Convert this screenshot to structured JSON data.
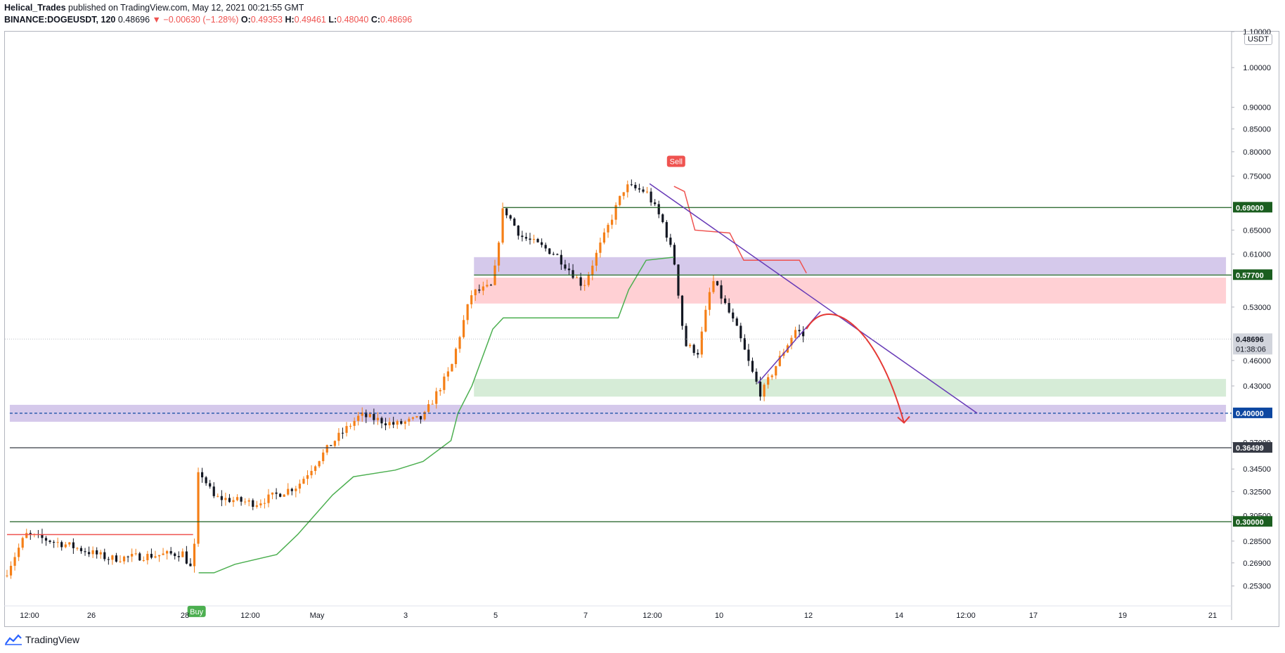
{
  "header": {
    "author": "Helical_Trades",
    "published": "published on TradingView.com, May 12, 2021 00:21:55 GMT",
    "symbol": "BINANCE:DOGEUSDT, 120",
    "last": "0.48696",
    "change": "−0.00630 (−1.28%)",
    "open_label": "O:",
    "open": "0.49353",
    "high_label": "H:",
    "high": "0.49461",
    "low_label": "L:",
    "low": "0.48040",
    "close_label": "C:",
    "close": "0.48696"
  },
  "currency_badge": "USDT",
  "footer": {
    "brand": "TradingView"
  },
  "colors": {
    "up": "#f57f17",
    "down": "#131722",
    "supertrend_up": "#4caf50",
    "supertrend_down": "#ef5350",
    "zone_purple": "#b39ddb",
    "zone_red": "#ffcdd2",
    "zone_green": "#c8e6c9",
    "trendline": "#673ab7",
    "dark_green": "#1b5e20",
    "accent_blue": "#0d47a1",
    "projection": "#e53935"
  },
  "chart_data": {
    "type": "candlestick",
    "symbol": "BINANCE:DOGEUSDT",
    "interval": "120",
    "x_tick_labels": [
      "12:00",
      "26",
      "28",
      "12:00",
      "May",
      "3",
      "5",
      "7",
      "12:00",
      "10",
      "12",
      "14",
      "12:00",
      "17",
      "19",
      "21"
    ],
    "y_tick_labels": [
      "1.10000",
      "1.00000",
      "0.90000",
      "0.85000",
      "0.80000",
      "0.75000",
      "0.65000",
      "0.61000",
      "0.53000",
      "0.46000",
      "0.43000",
      "0.37000",
      "0.34500",
      "0.32500",
      "0.30500",
      "0.28500",
      "0.26900",
      "0.25300"
    ],
    "ylim": [
      0.24,
      1.1
    ],
    "log_scale": true,
    "price_labels": [
      {
        "value": 0.69,
        "text": "0.69000",
        "color": "#1b5e20"
      },
      {
        "value": 0.577,
        "text": "0.57700",
        "color": "#1b5e20"
      },
      {
        "value": 0.4,
        "text": "0.40000",
        "color": "#0d47a1"
      },
      {
        "value": 0.36499,
        "text": "0.36499",
        "color": "#363a45"
      },
      {
        "value": 0.3,
        "text": "0.30000",
        "color": "#1b5e20"
      },
      {
        "value": 0.48696,
        "text": "0.48696",
        "color": "#d1d4dc",
        "countdown": "01:38:06"
      }
    ],
    "signals": [
      {
        "label": "Buy",
        "color": "#4caf50"
      },
      {
        "label": "Sell",
        "color": "#ef5350"
      }
    ],
    "horizontal_levels": [
      0.69,
      0.577,
      0.4,
      0.36499,
      0.3
    ],
    "zones": [
      {
        "name": "resistance-purple",
        "low": 0.578,
        "high": 0.605
      },
      {
        "name": "resistance-red",
        "low": 0.535,
        "high": 0.573
      },
      {
        "name": "support-green",
        "low": 0.418,
        "high": 0.438
      },
      {
        "name": "support-purple",
        "low": 0.391,
        "high": 0.409
      }
    ],
    "key_prices": {
      "first_top": 0.69,
      "second_top": 0.73,
      "crash_low": 0.42,
      "last": 0.48696,
      "start": 0.26,
      "pre_pump": 0.275,
      "buy_spike": 0.345
    }
  }
}
